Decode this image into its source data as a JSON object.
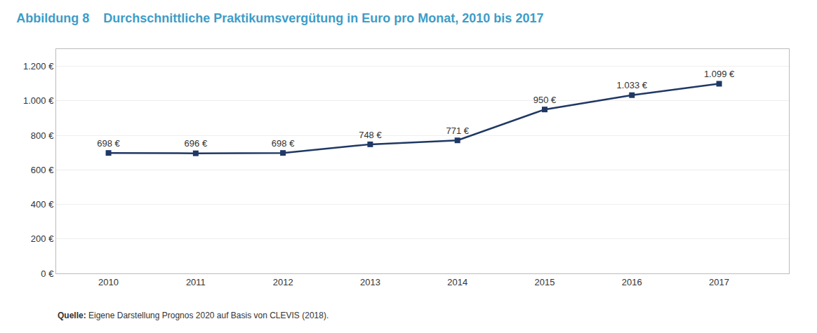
{
  "chart_data": {
    "type": "line",
    "title": "Abbildung 8",
    "subtitle": "Durchschnittliche Praktikumsvergütung in Euro pro Monat, 2010 bis 2017",
    "annotations": [
      "Quelle:",
      "Eigene Darstellung Prognos 2020 auf Basis von CLEVIS (2018)."
    ],
    "x": [
      2010,
      2011,
      2012,
      2013,
      2014,
      2015,
      2016,
      2017
    ],
    "values": [
      698,
      696,
      698,
      748,
      771,
      950,
      1033,
      1099
    ],
    "value_labels": [
      "698 €",
      "696 €",
      "698 €",
      "748 €",
      "771 €",
      "950 €",
      "1.033 €",
      "1.099 €"
    ],
    "data_labels": true,
    "color": "#1F3864",
    "marker": "square",
    "line_style": "solid",
    "xlim": [
      2009.4,
      2017.8
    ],
    "xticks": [
      2010,
      2011,
      2012,
      2013,
      2014,
      2015,
      2016,
      2017
    ],
    "ylim": [
      0,
      1300
    ],
    "yticks": [
      {
        "value": 0,
        "label": "0 €"
      },
      {
        "value": 200,
        "label": "200 €"
      },
      {
        "value": 400,
        "label": "400 €"
      },
      {
        "value": 600,
        "label": "600 €"
      },
      {
        "value": 800,
        "label": "800 €"
      },
      {
        "value": 1000,
        "label": "1.000 €"
      },
      {
        "value": 1200,
        "label": "1.200 €"
      }
    ],
    "grid": true
  }
}
